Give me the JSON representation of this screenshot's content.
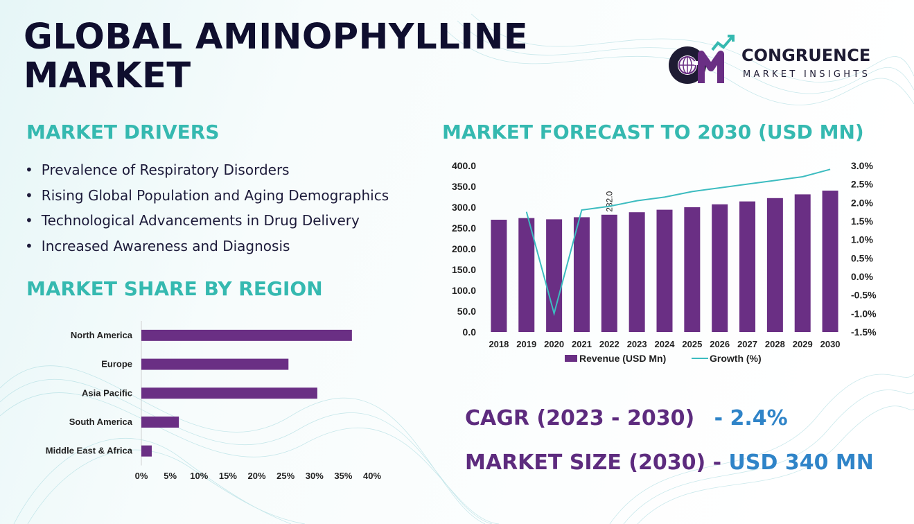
{
  "title_lines": [
    "GLOBAL AMINOPHYLLINE",
    "MARKET"
  ],
  "logo": {
    "name": "CONGRUENCE",
    "sub": "MARKET INSIGHTS"
  },
  "drivers": {
    "heading": "MARKET DRIVERS",
    "items": [
      "Prevalence of Respiratory Disorders",
      "Rising Global Population and Aging Demographics",
      "Technological Advancements in Drug Delivery",
      "Increased Awareness and Diagnosis"
    ]
  },
  "region_heading": "MARKET SHARE BY REGION",
  "forecast_heading": "MARKET FORECAST TO 2030 (USD MN)",
  "cagr": {
    "label": "CAGR (2023 - 2030)",
    "value": "- 2.4%"
  },
  "market_size": {
    "label": "MARKET SIZE (2030) -",
    "value": "USD 340 MN"
  },
  "colors": {
    "bar": "#6a2f84",
    "line": "#3cbcc0",
    "heading": "#35b9b0",
    "title": "#0f0e2e"
  },
  "chart_data": [
    {
      "type": "bar",
      "orientation": "horizontal",
      "categories": [
        "North America",
        "Europe",
        "Asia Pacific",
        "South America",
        "Middle East & Africa"
      ],
      "values": [
        36.5,
        25.5,
        30.5,
        6.5,
        1.8
      ],
      "xlim": [
        0,
        40
      ],
      "xticks": [
        "0%",
        "5%",
        "10%",
        "15%",
        "20%",
        "25%",
        "30%",
        "35%",
        "40%"
      ],
      "grid": false
    },
    {
      "type": "bar",
      "categories": [
        "2018",
        "2019",
        "2020",
        "2021",
        "2022",
        "2023",
        "2024",
        "2025",
        "2026",
        "2027",
        "2028",
        "2029",
        "2030"
      ],
      "series": [
        {
          "name": "Revenue (USD Mn)",
          "type": "bar",
          "axis": "left",
          "values": [
            270,
            274,
            271,
            276,
            282,
            288,
            294,
            300,
            307,
            314,
            322,
            331,
            340
          ]
        },
        {
          "name": "Growth (%)",
          "type": "line",
          "axis": "right",
          "values": [
            null,
            1.75,
            -1.0,
            1.8,
            1.9,
            2.05,
            2.15,
            2.3,
            2.4,
            2.5,
            2.6,
            2.7,
            2.9
          ]
        }
      ],
      "ylim_left": [
        0,
        400
      ],
      "yticks_left": [
        "0.0",
        "50.0",
        "100.0",
        "150.0",
        "200.0",
        "250.0",
        "300.0",
        "350.0",
        "400.0"
      ],
      "ylim_right": [
        -1.5,
        3.0
      ],
      "yticks_right": [
        "-1.5%",
        "-1.0%",
        "-0.5%",
        "0.0%",
        "0.5%",
        "1.0%",
        "1.5%",
        "2.0%",
        "2.5%",
        "3.0%"
      ],
      "data_labels": [
        {
          "category": "2022",
          "text": "282.0"
        }
      ],
      "legend": "bottom",
      "grid": false
    }
  ]
}
